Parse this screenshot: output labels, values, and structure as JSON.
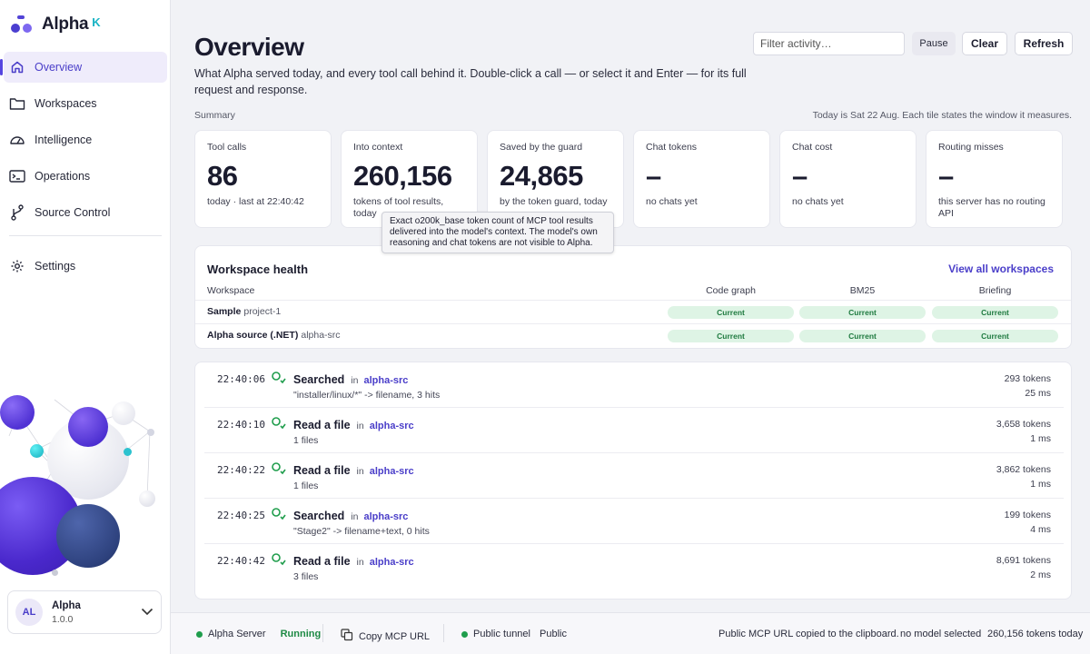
{
  "app": {
    "name": "Alpha",
    "badge": "K"
  },
  "sidebar": {
    "items": [
      {
        "label": "Overview",
        "icon": "home-icon",
        "active": true
      },
      {
        "label": "Workspaces",
        "icon": "folder-icon"
      },
      {
        "label": "Intelligence",
        "icon": "gauge-icon"
      },
      {
        "label": "Operations",
        "icon": "terminal-icon"
      },
      {
        "label": "Source Control",
        "icon": "branch-icon"
      }
    ],
    "settings": {
      "label": "Settings",
      "icon": "gear-icon"
    },
    "user": {
      "initials": "AL",
      "name": "Alpha",
      "version": "1.0.0"
    }
  },
  "header": {
    "title": "Overview",
    "description": "What Alpha served today, and every tool call behind it. Double-click a call — or select it and Enter — for its full request and response.",
    "filter_placeholder": "Filter activity…",
    "pause_label": "Pause",
    "clear_label": "Clear",
    "refresh_label": "Refresh"
  },
  "summary": {
    "label": "Summary",
    "note": "Today is Sat 22 Aug. Each tile states the window it measures.",
    "tiles": [
      {
        "label": "Tool calls",
        "value": "86",
        "sub": "today · last at 22:40:42"
      },
      {
        "label": "Into context",
        "value": "260,156",
        "sub": "tokens of tool results, today"
      },
      {
        "label": "Saved by the guard",
        "value": "24,865",
        "sub": "by the token guard, today"
      },
      {
        "label": "Chat tokens",
        "value": "–",
        "sub": "no chats yet"
      },
      {
        "label": "Chat cost",
        "value": "–",
        "sub": "no chats yet"
      },
      {
        "label": "Routing misses",
        "value": "–",
        "sub": "this server has no routing API"
      }
    ],
    "tooltip": "Exact o200k_base token count of MCP tool results delivered into the model's context. The model's own reasoning and chat tokens are not visible to Alpha."
  },
  "health": {
    "title": "Workspace health",
    "link": "View all workspaces",
    "columns": [
      "Workspace",
      "Code graph",
      "BM25",
      "Briefing"
    ],
    "rows": [
      {
        "name": "Sample",
        "id": "project-1",
        "statuses": [
          "Current",
          "Current",
          "Current"
        ]
      },
      {
        "name": "Alpha source (.NET)",
        "id": "alpha-src",
        "statuses": [
          "Current",
          "Current",
          "Current"
        ]
      }
    ]
  },
  "activity": {
    "in_label": "in",
    "rows": [
      {
        "time": "22:40:06",
        "action": "Searched",
        "workspace": "alpha-src",
        "detail": "\"installer/linux/*\" -> filename, 3 hits",
        "tokens": "293 tokens",
        "ms": "25 ms"
      },
      {
        "time": "22:40:10",
        "action": "Read a file",
        "workspace": "alpha-src",
        "detail": "1 files",
        "tokens": "3,658 tokens",
        "ms": "1 ms"
      },
      {
        "time": "22:40:22",
        "action": "Read a file",
        "workspace": "alpha-src",
        "detail": "1 files",
        "tokens": "3,862 tokens",
        "ms": "1 ms"
      },
      {
        "time": "22:40:25",
        "action": "Searched",
        "workspace": "alpha-src",
        "detail": "\"Stage2\" -> filename+text, 0 hits",
        "tokens": "199 tokens",
        "ms": "4 ms"
      },
      {
        "time": "22:40:42",
        "action": "Read a file",
        "workspace": "alpha-src",
        "detail": "3 files",
        "tokens": "8,691 tokens",
        "ms": "2 ms"
      }
    ]
  },
  "statusbar": {
    "server_label": "Alpha Server",
    "server_status": "Running",
    "copy_label": "Copy MCP URL",
    "tunnel_label": "Public tunnel",
    "tunnel_value": "Public",
    "message": "Public MCP URL copied to the clipboard.",
    "model": "no model selected",
    "tokens_today": "260,156 tokens today"
  },
  "colors": {
    "accent": "#4a3ec9",
    "success": "#1f9d4c",
    "pill_bg": "#def4e5"
  }
}
